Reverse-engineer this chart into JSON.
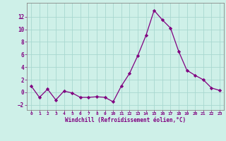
{
  "x": [
    0,
    1,
    2,
    3,
    4,
    5,
    6,
    7,
    8,
    9,
    10,
    11,
    12,
    13,
    14,
    15,
    16,
    17,
    18,
    19,
    20,
    21,
    22,
    23
  ],
  "y": [
    1,
    -0.8,
    0.5,
    -1.2,
    0.2,
    -0.1,
    -0.8,
    -0.8,
    -0.7,
    -0.8,
    -1.5,
    1.0,
    3.0,
    5.8,
    9.0,
    13.0,
    11.5,
    10.2,
    6.5,
    3.5,
    2.7,
    2.0,
    0.7,
    0.3
  ],
  "line_color": "#800080",
  "marker": "D",
  "marker_size": 2.2,
  "background_color": "#cef0e8",
  "grid_color": "#a8d8d0",
  "xlabel": "Windchill (Refroidissement éolien,°C)",
  "xlabel_color": "#800080",
  "tick_color": "#800080",
  "xlim": [
    -0.5,
    23.5
  ],
  "ylim": [
    -2.8,
    14.2
  ],
  "yticks": [
    -2,
    0,
    2,
    4,
    6,
    8,
    10,
    12
  ],
  "xticks": [
    0,
    1,
    2,
    3,
    4,
    5,
    6,
    7,
    8,
    9,
    10,
    11,
    12,
    13,
    14,
    15,
    16,
    17,
    18,
    19,
    20,
    21,
    22,
    23
  ],
  "spine_color": "#888888",
  "figsize": [
    3.2,
    2.0
  ],
  "dpi": 100
}
